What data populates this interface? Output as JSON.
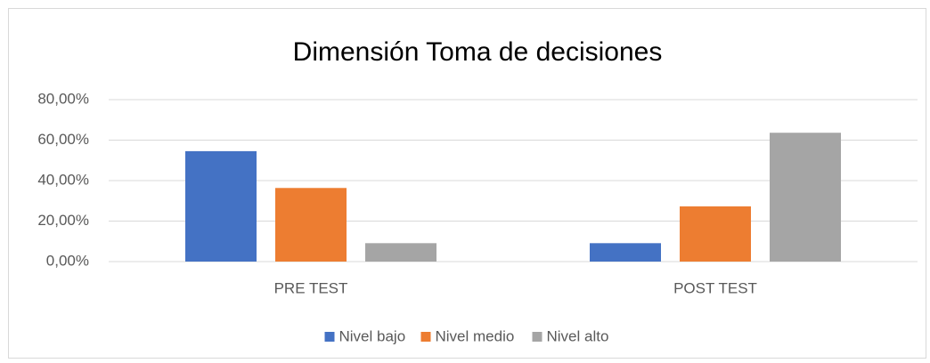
{
  "chart_data": {
    "type": "bar",
    "title": "Dimensión Toma de decisiones",
    "categories": [
      "PRE TEST",
      "POST TEST"
    ],
    "series": [
      {
        "name": "Nivel bajo",
        "color": "#4472c4",
        "values": [
          54.55,
          9.09
        ]
      },
      {
        "name": "Nivel medio",
        "color": "#ed7d31",
        "values": [
          36.36,
          27.27
        ]
      },
      {
        "name": "Nivel alto",
        "color": "#a5a5a5",
        "values": [
          9.09,
          63.64
        ]
      }
    ],
    "ylim": [
      0,
      80
    ],
    "yticks": [
      {
        "value": 0,
        "label": "0,00%"
      },
      {
        "value": 20,
        "label": "20,00%"
      },
      {
        "value": 40,
        "label": "40,00%"
      },
      {
        "value": 60,
        "label": "60,00%"
      },
      {
        "value": 80,
        "label": "80,00%"
      }
    ],
    "grid": true,
    "legend": "bottom"
  }
}
